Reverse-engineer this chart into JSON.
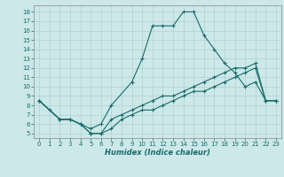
{
  "title": "",
  "xlabel": "Humidex (Indice chaleur)",
  "bg_color": "#cce8e8",
  "line_color": "#1a6b6b",
  "grid_color": "#aacccc",
  "xlim": [
    -0.5,
    23.5
  ],
  "ylim": [
    4.5,
    18.7
  ],
  "xticks": [
    0,
    1,
    2,
    3,
    4,
    5,
    6,
    7,
    8,
    9,
    10,
    11,
    12,
    13,
    14,
    15,
    16,
    17,
    18,
    19,
    20,
    21,
    22,
    23
  ],
  "yticks": [
    5,
    6,
    7,
    8,
    9,
    10,
    11,
    12,
    13,
    14,
    15,
    16,
    17,
    18
  ],
  "line1_x": [
    0,
    1,
    2,
    3,
    4,
    5,
    6,
    7,
    9,
    10,
    11,
    12,
    13,
    14,
    15,
    16,
    17,
    18,
    19,
    20,
    21,
    22,
    23
  ],
  "line1_y": [
    8.5,
    7.5,
    6.5,
    6.5,
    6.0,
    5.5,
    6.0,
    8.0,
    10.5,
    13.0,
    16.5,
    16.5,
    16.5,
    18.0,
    18.0,
    15.5,
    14.0,
    12.5,
    11.5,
    10.0,
    10.5,
    8.5,
    8.5
  ],
  "line2_x": [
    0,
    2,
    3,
    4,
    5,
    6,
    7,
    8,
    9,
    10,
    11,
    12,
    13,
    14,
    15,
    16,
    17,
    18,
    19,
    20,
    21,
    22,
    23
  ],
  "line2_y": [
    8.5,
    6.5,
    6.5,
    6.0,
    5.0,
    5.0,
    5.5,
    6.5,
    7.0,
    7.5,
    7.5,
    8.0,
    8.5,
    9.0,
    9.5,
    9.5,
    10.0,
    10.5,
    11.0,
    11.5,
    12.0,
    8.5,
    8.5
  ],
  "line3_x": [
    0,
    2,
    3,
    4,
    5,
    6,
    7,
    8,
    9,
    10,
    11,
    12,
    13,
    14,
    15,
    16,
    17,
    18,
    19,
    20,
    21,
    22,
    23
  ],
  "line3_y": [
    8.5,
    6.5,
    6.5,
    6.0,
    5.0,
    5.0,
    6.5,
    7.0,
    7.5,
    8.0,
    8.5,
    9.0,
    9.0,
    9.5,
    10.0,
    10.5,
    11.0,
    11.5,
    12.0,
    12.0,
    12.5,
    8.5,
    8.5
  ],
  "tick_fontsize": 5.0,
  "xlabel_fontsize": 6.0,
  "linewidth": 0.8,
  "markersize": 2.5
}
